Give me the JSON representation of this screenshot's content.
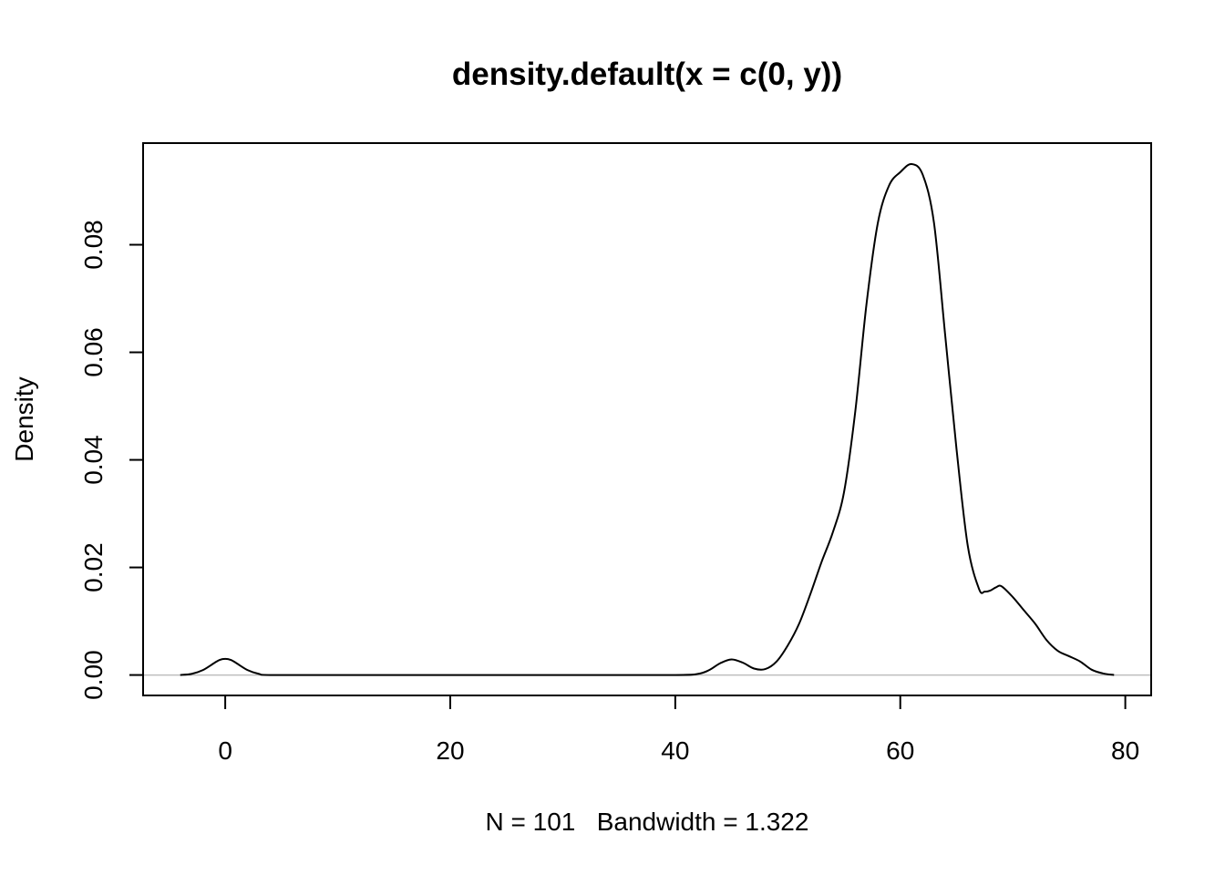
{
  "chart_data": {
    "type": "line",
    "title": "density.default(x = c(0, y))",
    "xlabel": "N = 101   Bandwidth = 1.322",
    "ylabel": "Density",
    "xlim": [
      -7.3,
      82.3
    ],
    "ylim": [
      -0.0038,
      0.0989
    ],
    "x_ticks": [
      0,
      20,
      40,
      60,
      80
    ],
    "x_tick_labels": [
      "0",
      "20",
      "40",
      "60",
      "80"
    ],
    "y_ticks": [
      0,
      0.02,
      0.04,
      0.06,
      0.08
    ],
    "y_tick_labels": [
      "0.00",
      "0.02",
      "0.04",
      "0.06",
      "0.08"
    ],
    "grid": false,
    "baseline": 0,
    "series": [
      {
        "x": [
          -4,
          -3,
          -2,
          -1,
          -0.5,
          0,
          0.5,
          1,
          2,
          3,
          4,
          10,
          20,
          30,
          40,
          42,
          43,
          44,
          45,
          46,
          47,
          48,
          49,
          50,
          51,
          52,
          53,
          54,
          55,
          56,
          57,
          58,
          59,
          60,
          61,
          62,
          63,
          64,
          65,
          66,
          67,
          67.5,
          68,
          68.5,
          69,
          70,
          71,
          72,
          73,
          74,
          75,
          76,
          77,
          78,
          79
        ],
        "y": [
          0,
          0.0002,
          0.0009,
          0.0022,
          0.0028,
          0.003,
          0.0028,
          0.0022,
          0.0009,
          0.0002,
          0,
          0,
          0,
          0,
          0,
          0.0002,
          0.0009,
          0.0022,
          0.0029,
          0.0023,
          0.0012,
          0.0011,
          0.0025,
          0.0055,
          0.0095,
          0.015,
          0.021,
          0.0265,
          0.034,
          0.049,
          0.069,
          0.084,
          0.091,
          0.0935,
          0.095,
          0.093,
          0.084,
          0.063,
          0.042,
          0.024,
          0.016,
          0.0155,
          0.0157,
          0.0163,
          0.0165,
          0.0145,
          0.012,
          0.0095,
          0.0065,
          0.0045,
          0.0035,
          0.0025,
          0.001,
          0.0003,
          0
        ]
      }
    ]
  }
}
